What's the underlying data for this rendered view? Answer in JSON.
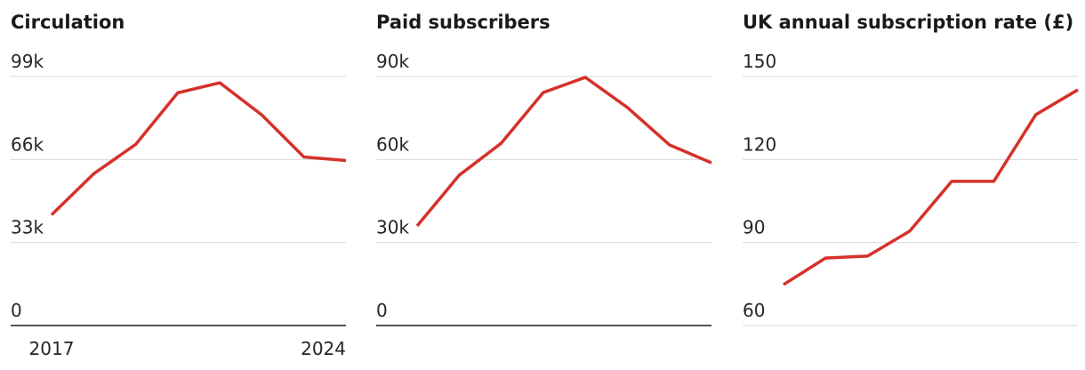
{
  "chart_data": [
    {
      "type": "line",
      "title": "Circulation",
      "categories": [
        "2017",
        null,
        null,
        null,
        null,
        null,
        null,
        "2024"
      ],
      "values": [
        44000,
        60300,
        72000,
        92500,
        96500,
        83700,
        67000,
        65600
      ],
      "color": "#d5312a",
      "ylim": [
        0,
        99000
      ],
      "yticks": [
        0,
        {
          "value": 33000,
          "label": "33k"
        },
        {
          "value": 66000,
          "label": "66k"
        },
        {
          "value": 99000,
          "label": "99k"
        }
      ],
      "grid": true
    },
    {
      "type": "line",
      "title": "Paid subscribers",
      "values": [
        36000,
        54300,
        65900,
        84200,
        89700,
        78800,
        65300,
        58800
      ],
      "color": "#d5312a",
      "ylim": [
        0,
        90000
      ],
      "yticks": [
        0,
        {
          "value": 30000,
          "label": "30k"
        },
        {
          "value": 60000,
          "label": "60k"
        },
        {
          "value": 90000,
          "label": "90k"
        }
      ],
      "grid": true
    },
    {
      "type": "line",
      "title": "UK annual subscription rate (£)",
      "values": [
        74.8,
        84.4,
        85.1,
        94.1,
        112.1,
        112.1,
        136.2,
        145.2
      ],
      "color": "#d5312a",
      "ylim": [
        60,
        150
      ],
      "yticks": [
        60,
        90,
        120,
        150
      ],
      "grid": true
    }
  ]
}
